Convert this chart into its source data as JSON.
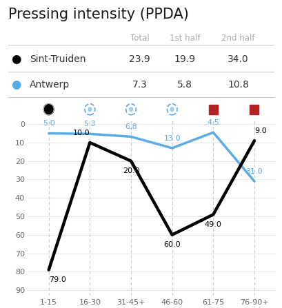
{
  "title": "Pressing intensity (PPDA)",
  "col_headers": [
    "Total",
    "1st half",
    "2nd half"
  ],
  "team1_name": "Sint-Truiden",
  "team1_total": "23.9",
  "team1_half1": "19.9",
  "team1_half2": "34.0",
  "team2_name": "Antwerp",
  "team2_total": "7.3",
  "team2_half1": "5.8",
  "team2_half2": "10.8",
  "x_labels": [
    "1-15",
    "16-30",
    "31-45+",
    "46-60",
    "61-75",
    "76-90+"
  ],
  "black_values": [
    79.0,
    10.0,
    20.0,
    60.0,
    49.0,
    9.0
  ],
  "blue_values": [
    5.0,
    5.3,
    6.8,
    13.0,
    4.5,
    31.0
  ],
  "black_color": "#000000",
  "blue_color": "#5aabe8",
  "red_color": "#b22222",
  "header_color": "#aaaaaa",
  "grid_color": "#e0e0e0",
  "vline_color": "#cccccc",
  "text_color": "#333333",
  "y_ticks": [
    0,
    10,
    20,
    30,
    40,
    50,
    60,
    70,
    80,
    90
  ],
  "soccer_black_idx": [
    0
  ],
  "soccer_blue_idx": [
    1,
    2,
    3
  ],
  "red_square_idx": [
    4,
    5
  ]
}
